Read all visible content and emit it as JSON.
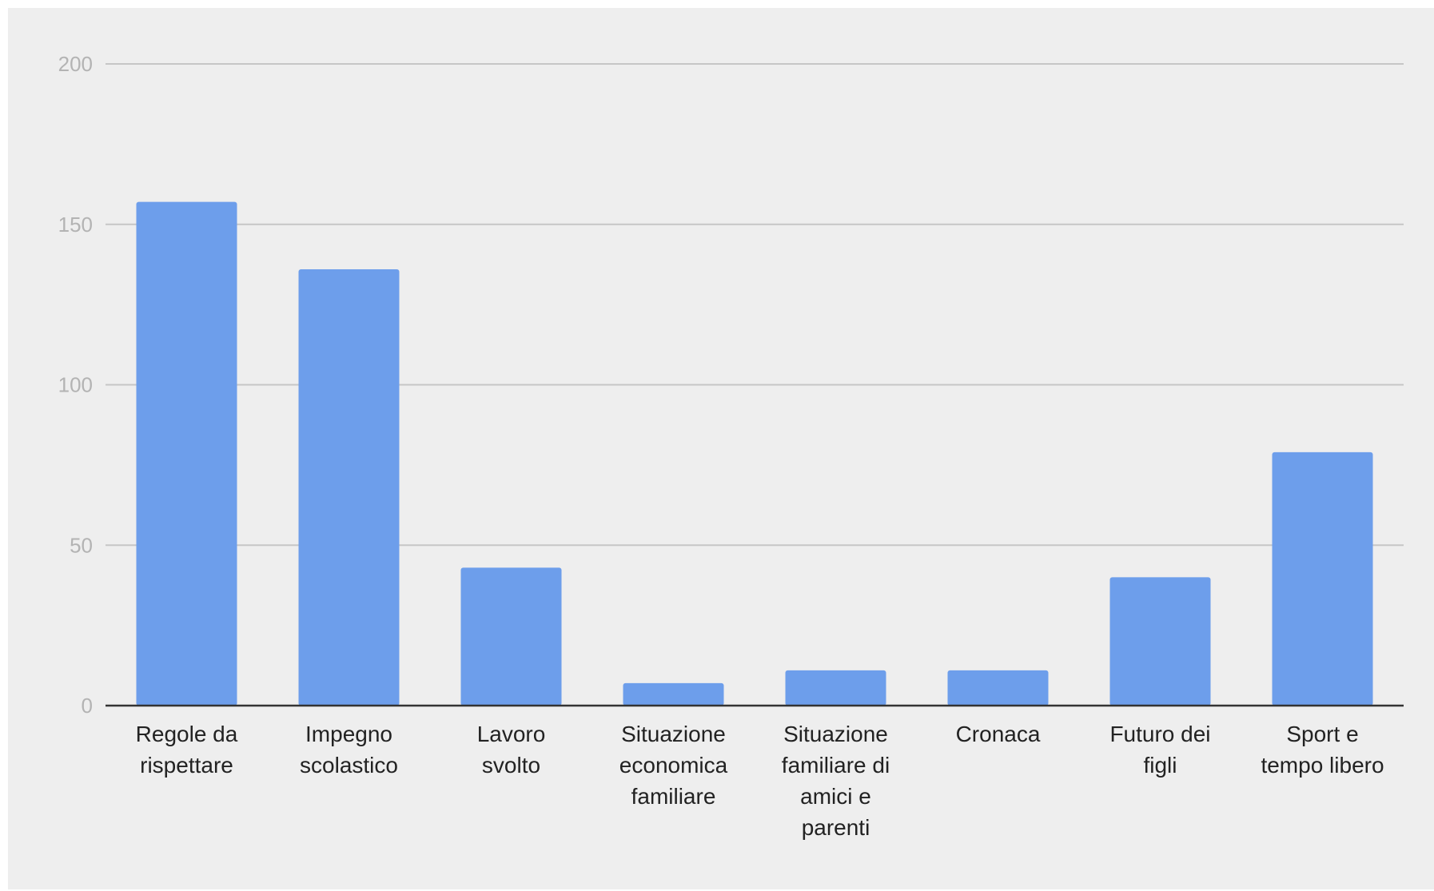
{
  "chart_data": {
    "type": "bar",
    "title": "",
    "xlabel": "",
    "ylabel": "",
    "ylim": [
      0,
      200
    ],
    "yticks": [
      "0",
      "50",
      "100",
      "150",
      "200"
    ],
    "grid": true,
    "legend": "none",
    "bar_color": "#6d9eeb",
    "categories": [
      [
        "Regole da",
        "rispettare"
      ],
      [
        "Impegno",
        "scolastico"
      ],
      [
        "Lavoro",
        "svolto"
      ],
      [
        "Situazione",
        "economica",
        "familiare"
      ],
      [
        "Situazione",
        "familiare di",
        "amici e",
        "parenti"
      ],
      [
        "Cronaca"
      ],
      [
        "Futuro dei",
        "figli"
      ],
      [
        "Sport e",
        "tempo libero"
      ]
    ],
    "values": [
      157,
      136,
      43,
      7,
      11,
      11,
      40,
      79
    ]
  },
  "colors": {
    "background": "#eeeeee",
    "gridline": "#c6c6c6",
    "axis": "#333333",
    "tick_text": "#b3b3b3",
    "label_text": "#222222"
  }
}
